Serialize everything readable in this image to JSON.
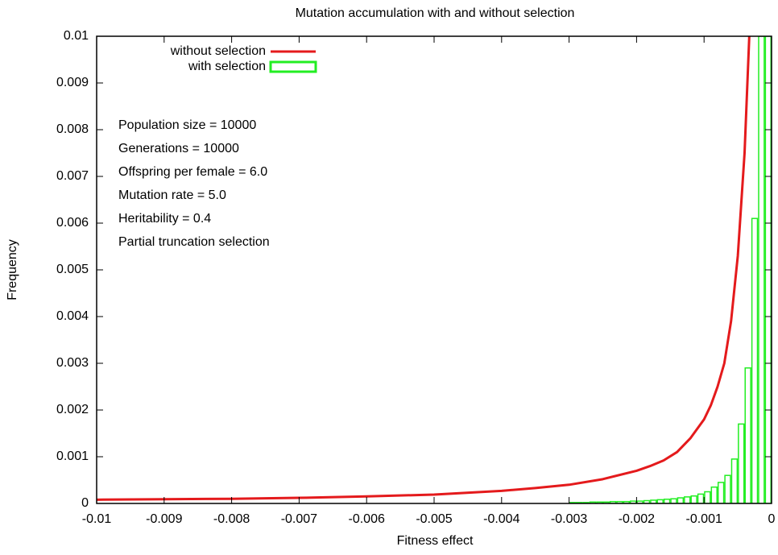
{
  "chart_data": {
    "type": "line",
    "title": "Mutation accumulation with and without selection",
    "x_label": "Fitness effect",
    "y_label": "Frequency",
    "xlim": [
      -0.01,
      0
    ],
    "ylim": [
      0,
      0.01
    ],
    "xticks": [
      -0.01,
      -0.009,
      -0.008,
      -0.007,
      -0.006,
      -0.005,
      -0.004,
      -0.003,
      -0.002,
      -0.001,
      0
    ],
    "yticks": [
      0,
      0.001,
      0.002,
      0.003,
      0.004,
      0.005,
      0.006,
      0.007,
      0.008,
      0.009,
      0.01
    ],
    "grid": false,
    "legend": "top left",
    "annotations": [
      "Population size = 10000",
      "Generations = 10000",
      "Offspring per female = 6.0",
      "Mutation rate = 5.0",
      "Heritability = 0.4",
      "Partial truncation selection"
    ],
    "series": [
      {
        "name": "without selection",
        "type": "line",
        "color": "#e41a1c",
        "x": [
          -0.01,
          -0.009,
          -0.008,
          -0.007,
          -0.006,
          -0.005,
          -0.004,
          -0.0035,
          -0.003,
          -0.0025,
          -0.002,
          -0.0018,
          -0.0016,
          -0.0014,
          -0.0012,
          -0.001,
          -0.0009,
          -0.0008,
          -0.0007,
          -0.0006,
          -0.0005,
          -0.0004,
          -0.00033
        ],
        "values": [
          8e-05,
          9e-05,
          0.0001,
          0.00012,
          0.00015,
          0.00019,
          0.00027,
          0.00033,
          0.0004,
          0.00052,
          0.0007,
          0.0008,
          0.00092,
          0.0011,
          0.0014,
          0.0018,
          0.0021,
          0.0025,
          0.003,
          0.0039,
          0.0053,
          0.0075,
          0.01
        ]
      },
      {
        "name": "with selection",
        "type": "histogram",
        "color": "#22ee22",
        "bins": [
          -0.003,
          -0.0029,
          -0.0028,
          -0.0027,
          -0.0026,
          -0.0025,
          -0.0024,
          -0.0023,
          -0.0022,
          -0.0021,
          -0.002,
          -0.0019,
          -0.0018,
          -0.0017,
          -0.0016,
          -0.0015,
          -0.0014,
          -0.0013,
          -0.0012,
          -0.0011,
          -0.001,
          -0.0009,
          -0.0008,
          -0.0007,
          -0.0006,
          -0.0005,
          -0.0004,
          -0.0003,
          -0.0002,
          -0.0001,
          0
        ],
        "values": [
          2e-05,
          2e-05,
          2e-05,
          3e-05,
          3e-05,
          3e-05,
          4e-05,
          4e-05,
          4e-05,
          5e-05,
          5e-05,
          6e-05,
          7e-05,
          8e-05,
          9e-05,
          0.0001,
          0.00012,
          0.00014,
          0.00016,
          0.0002,
          0.00025,
          0.00035,
          0.00045,
          0.0006,
          0.00095,
          0.0017,
          0.0029,
          0.0061,
          0.01,
          0.01
        ]
      }
    ]
  }
}
